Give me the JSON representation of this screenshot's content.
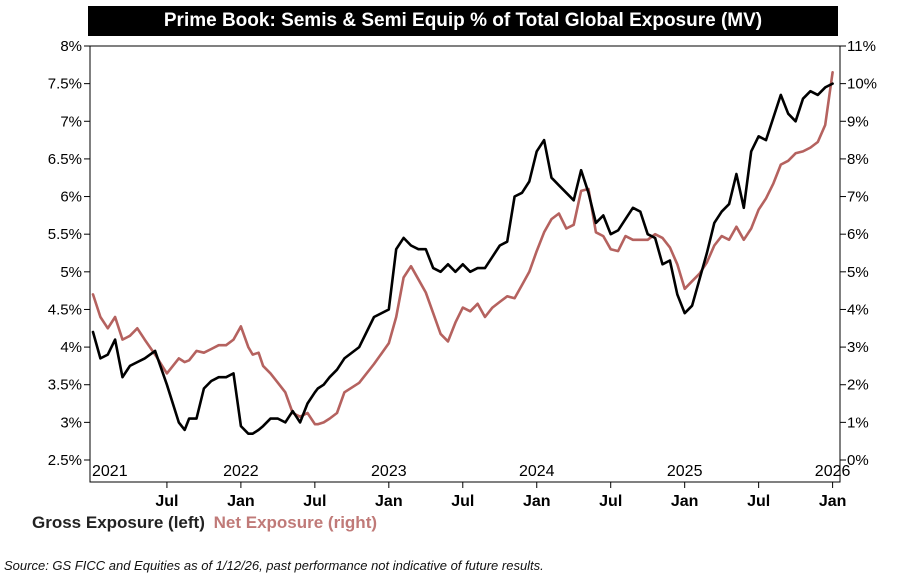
{
  "chart_data": {
    "type": "line",
    "title": "Prime Book: Semis & Semi Equip % of Total Global Exposure (MV)",
    "x_axis": {
      "year_labels": [
        "2021",
        "2022",
        "2023",
        "2024",
        "2025",
        "2026"
      ],
      "month_labels": [
        "Jul",
        "Jan",
        "Jul",
        "Jan",
        "Jul",
        "Jan",
        "Jul",
        "Jan",
        "Jul",
        "Jan"
      ],
      "year_positions": [
        2021.0,
        2022.0,
        2023.0,
        2024.0,
        2025.0,
        2026.0
      ],
      "month_positions": [
        2021.5,
        2022.0,
        2022.5,
        2023.0,
        2023.5,
        2024.0,
        2024.5,
        2025.0,
        2025.5,
        2026.0
      ],
      "range": [
        2020.98,
        2026.05
      ]
    },
    "left_axis": {
      "ylim": [
        2.5,
        8.0
      ],
      "ticks": [
        2.5,
        3.0,
        3.5,
        4.0,
        4.5,
        5.0,
        5.5,
        6.0,
        6.5,
        7.0,
        7.5,
        8.0
      ],
      "tick_labels": [
        "2.5%",
        "3%",
        "3.5%",
        "4%",
        "4.5%",
        "5%",
        "5.5%",
        "6%",
        "6.5%",
        "7%",
        "7.5%",
        "8%"
      ]
    },
    "right_axis": {
      "ylim": [
        0,
        11
      ],
      "ticks": [
        0,
        1,
        2,
        3,
        4,
        5,
        6,
        7,
        8,
        9,
        10,
        11
      ],
      "tick_labels": [
        "0%",
        "1%",
        "2%",
        "3%",
        "4%",
        "5%",
        "6%",
        "7%",
        "8%",
        "9%",
        "10%",
        "11%"
      ]
    },
    "series": [
      {
        "name": "Gross Exposure (left)",
        "axis": "left",
        "color": "#000000",
        "x": [
          2021.0,
          2021.05,
          2021.1,
          2021.15,
          2021.2,
          2021.25,
          2021.3,
          2021.35,
          2021.42,
          2021.5,
          2021.58,
          2021.62,
          2021.65,
          2021.7,
          2021.75,
          2021.8,
          2021.85,
          2021.9,
          2021.95,
          2022.0,
          2022.05,
          2022.08,
          2022.12,
          2022.15,
          2022.2,
          2022.25,
          2022.3,
          2022.35,
          2022.4,
          2022.45,
          2022.5,
          2022.52,
          2022.56,
          2022.6,
          2022.65,
          2022.7,
          2022.8,
          2022.9,
          2023.0,
          2023.05,
          2023.1,
          2023.15,
          2023.2,
          2023.25,
          2023.3,
          2023.35,
          2023.4,
          2023.45,
          2023.5,
          2023.55,
          2023.6,
          2023.65,
          2023.7,
          2023.75,
          2023.8,
          2023.85,
          2023.9,
          2023.95,
          2024.0,
          2024.05,
          2024.1,
          2024.15,
          2024.2,
          2024.25,
          2024.3,
          2024.35,
          2024.4,
          2024.45,
          2024.5,
          2024.55,
          2024.6,
          2024.65,
          2024.7,
          2024.75,
          2024.8,
          2024.85,
          2024.9,
          2024.95,
          2025.0,
          2025.05,
          2025.1,
          2025.15,
          2025.2,
          2025.25,
          2025.3,
          2025.35,
          2025.4,
          2025.45,
          2025.5,
          2025.55,
          2025.6,
          2025.65,
          2025.7,
          2025.75,
          2025.8,
          2025.85,
          2025.9,
          2025.95,
          2026.0
        ],
        "values": [
          4.2,
          3.85,
          3.9,
          4.1,
          3.6,
          3.75,
          3.8,
          3.85,
          3.95,
          3.5,
          3.0,
          2.9,
          3.05,
          3.05,
          3.45,
          3.55,
          3.6,
          3.6,
          3.65,
          2.95,
          2.85,
          2.85,
          2.9,
          2.95,
          3.05,
          3.05,
          3.0,
          3.15,
          3.0,
          3.25,
          3.4,
          3.45,
          3.5,
          3.6,
          3.7,
          3.85,
          4.0,
          4.4,
          4.5,
          5.3,
          5.45,
          5.35,
          5.3,
          5.3,
          5.05,
          5.0,
          5.1,
          5.0,
          5.1,
          5.0,
          5.05,
          5.05,
          5.2,
          5.35,
          5.4,
          6.0,
          6.05,
          6.2,
          6.6,
          6.75,
          6.25,
          6.15,
          6.05,
          5.95,
          6.35,
          6.05,
          5.65,
          5.75,
          5.5,
          5.55,
          5.7,
          5.85,
          5.8,
          5.5,
          5.45,
          5.1,
          5.15,
          4.7,
          4.45,
          4.55,
          4.9,
          5.25,
          5.65,
          5.8,
          5.9,
          6.3,
          5.85,
          6.6,
          6.8,
          6.75,
          7.05,
          7.35,
          7.1,
          7.0,
          7.3,
          7.4,
          7.35,
          7.45,
          7.5
        ]
      },
      {
        "name": "Net Exposure (right)",
        "axis": "right",
        "color": "#b5625f",
        "x": [
          2021.0,
          2021.05,
          2021.1,
          2021.15,
          2021.2,
          2021.25,
          2021.3,
          2021.35,
          2021.42,
          2021.5,
          2021.58,
          2021.62,
          2021.65,
          2021.7,
          2021.75,
          2021.8,
          2021.85,
          2021.9,
          2021.95,
          2022.0,
          2022.05,
          2022.08,
          2022.12,
          2022.15,
          2022.2,
          2022.25,
          2022.3,
          2022.35,
          2022.4,
          2022.45,
          2022.5,
          2022.52,
          2022.56,
          2022.6,
          2022.65,
          2022.7,
          2022.8,
          2022.9,
          2023.0,
          2023.05,
          2023.1,
          2023.15,
          2023.2,
          2023.25,
          2023.3,
          2023.35,
          2023.4,
          2023.45,
          2023.5,
          2023.55,
          2023.6,
          2023.65,
          2023.7,
          2023.75,
          2023.8,
          2023.85,
          2023.9,
          2023.95,
          2024.0,
          2024.05,
          2024.1,
          2024.15,
          2024.2,
          2024.25,
          2024.3,
          2024.35,
          2024.4,
          2024.45,
          2024.5,
          2024.55,
          2024.6,
          2024.65,
          2024.7,
          2024.75,
          2024.8,
          2024.85,
          2024.9,
          2024.95,
          2025.0,
          2025.05,
          2025.1,
          2025.15,
          2025.2,
          2025.25,
          2025.3,
          2025.35,
          2025.4,
          2025.45,
          2025.5,
          2025.55,
          2025.6,
          2025.65,
          2025.7,
          2025.75,
          2025.8,
          2025.85,
          2025.9,
          2025.95,
          2026.0
        ],
        "values": [
          4.4,
          3.8,
          3.5,
          3.8,
          3.2,
          3.3,
          3.5,
          3.2,
          2.8,
          2.3,
          2.7,
          2.6,
          2.65,
          2.9,
          2.85,
          2.95,
          3.05,
          3.05,
          3.2,
          3.55,
          3.0,
          2.8,
          2.85,
          2.5,
          2.3,
          2.05,
          1.8,
          1.25,
          1.15,
          1.25,
          0.95,
          0.95,
          1.0,
          1.1,
          1.25,
          1.8,
          2.05,
          2.55,
          3.1,
          3.8,
          4.85,
          5.15,
          4.8,
          4.45,
          3.9,
          3.35,
          3.15,
          3.65,
          4.05,
          3.95,
          4.15,
          3.8,
          4.05,
          4.2,
          4.35,
          4.3,
          4.65,
          5.0,
          5.55,
          6.05,
          6.4,
          6.55,
          6.15,
          6.25,
          7.15,
          7.2,
          6.05,
          5.95,
          5.6,
          5.55,
          5.95,
          5.85,
          5.85,
          5.85,
          6.0,
          5.9,
          5.65,
          5.2,
          4.55,
          4.75,
          4.95,
          5.25,
          5.7,
          5.95,
          5.85,
          6.2,
          5.85,
          6.15,
          6.65,
          6.95,
          7.35,
          7.85,
          7.95,
          8.15,
          8.2,
          8.3,
          8.45,
          8.9,
          10.3
        ]
      }
    ]
  },
  "legend": {
    "gross_label": "Gross Exposure (left)",
    "net_label": "Net Exposure (right)"
  },
  "source_note": "Source: GS FICC and Equities as of 1/12/26, past performance not indicative of future results."
}
